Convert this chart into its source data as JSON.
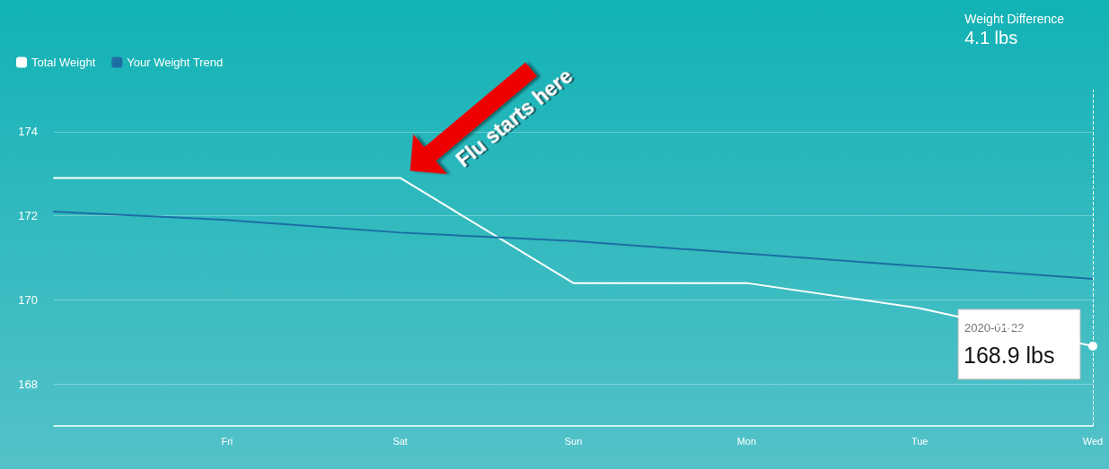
{
  "chart_data": {
    "type": "line",
    "title": "Weight Difference",
    "subtitle": "4.1 lbs",
    "categories": [
      null,
      "Fri",
      "Sat",
      "Sun",
      "Mon",
      "Tue",
      "Wed"
    ],
    "series": [
      {
        "name": "Total Weight",
        "color": "#ffffff",
        "values": [
          172.9,
          172.9,
          172.9,
          170.4,
          170.4,
          169.8,
          168.9
        ]
      },
      {
        "name": "Your Weight Trend",
        "color": "#1c6ea4",
        "values": [
          172.1,
          171.9,
          171.6,
          171.4,
          171.1,
          170.8,
          170.5
        ]
      }
    ],
    "ylim": [
      167,
      175
    ],
    "yticks": [
      168,
      170,
      172,
      174
    ],
    "grid": "y",
    "legend": "top left",
    "ref_lines": [
      {
        "axis": "x",
        "value": "Wed",
        "color": "#ffffff",
        "line_style": "dashed"
      }
    ],
    "annotations": [
      {
        "text": "Flu starts here",
        "x": "Sat",
        "y": 172.9
      },
      "2020-01-22",
      {
        "text": "168.9 lbs",
        "x": "Wed",
        "y": 168.9
      }
    ]
  }
}
